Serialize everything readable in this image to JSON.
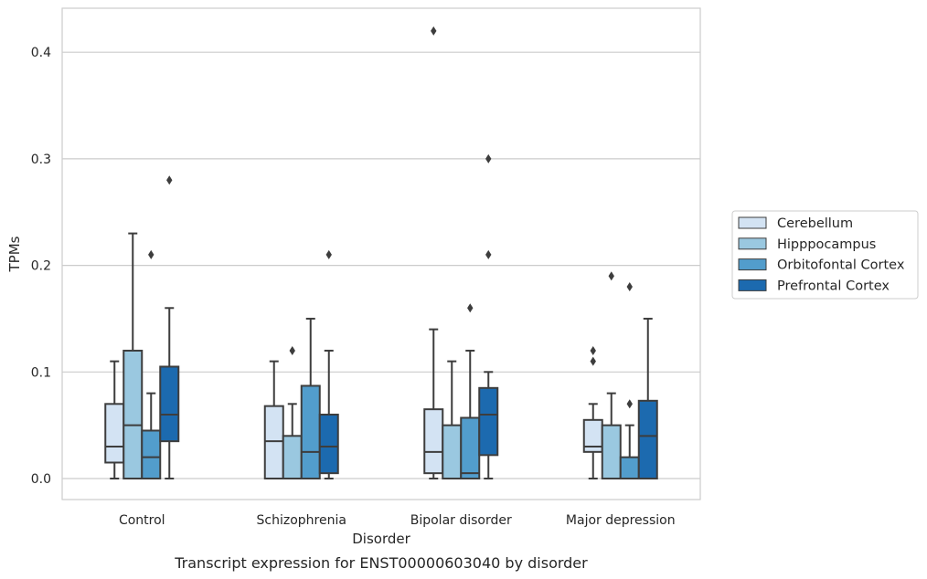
{
  "chart_data": {
    "type": "box",
    "title": "",
    "caption": "Transcript expression for ENST00000603040 by disorder",
    "xlabel": "Disorder",
    "ylabel": "TPMs",
    "ylim": [
      -0.02,
      0.44
    ],
    "yticks": [
      0.0,
      0.1,
      0.2,
      0.3,
      0.4
    ],
    "ytick_labels": [
      "0.0",
      "0.1",
      "0.2",
      "0.3",
      "0.4"
    ],
    "grid": "horizontal",
    "legend_position": "center-right, outside plot",
    "categories": [
      "Control",
      "Schizophrenia",
      "Bipolar disorder",
      "Major depression"
    ],
    "series": [
      {
        "name": "Cerebellum",
        "color": "#d3e3f3",
        "boxes": [
          {
            "whislo": 0.0,
            "q1": 0.015,
            "med": 0.03,
            "q3": 0.07,
            "whishi": 0.11,
            "fliers": []
          },
          {
            "whislo": 0.0,
            "q1": 0.0,
            "med": 0.035,
            "q3": 0.068,
            "whishi": 0.11,
            "fliers": []
          },
          {
            "whislo": 0.0,
            "q1": 0.005,
            "med": 0.025,
            "q3": 0.065,
            "whishi": 0.14,
            "fliers": [
              0.42
            ]
          },
          {
            "whislo": 0.0,
            "q1": 0.025,
            "med": 0.03,
            "q3": 0.055,
            "whishi": 0.07,
            "fliers": [
              0.11,
              0.12
            ]
          }
        ]
      },
      {
        "name": "Hipppocampus",
        "color": "#9ac8e0",
        "boxes": [
          {
            "whislo": 0.0,
            "q1": 0.0,
            "med": 0.05,
            "q3": 0.12,
            "whishi": 0.23,
            "fliers": []
          },
          {
            "whislo": 0.0,
            "q1": 0.0,
            "med": 0.0,
            "q3": 0.04,
            "whishi": 0.07,
            "fliers": [
              0.12
            ]
          },
          {
            "whislo": 0.0,
            "q1": 0.0,
            "med": 0.0,
            "q3": 0.05,
            "whishi": 0.11,
            "fliers": []
          },
          {
            "whislo": 0.0,
            "q1": 0.0,
            "med": 0.0,
            "q3": 0.05,
            "whishi": 0.08,
            "fliers": [
              0.19
            ]
          }
        ]
      },
      {
        "name": "Orbitofontal Cortex",
        "color": "#529dcc",
        "boxes": [
          {
            "whislo": 0.0,
            "q1": 0.0,
            "med": 0.02,
            "q3": 0.045,
            "whishi": 0.08,
            "fliers": [
              0.21
            ]
          },
          {
            "whislo": 0.0,
            "q1": 0.0,
            "med": 0.025,
            "q3": 0.087,
            "whishi": 0.15,
            "fliers": []
          },
          {
            "whislo": 0.0,
            "q1": 0.0,
            "med": 0.005,
            "q3": 0.057,
            "whishi": 0.12,
            "fliers": [
              0.16
            ]
          },
          {
            "whislo": 0.0,
            "q1": 0.0,
            "med": 0.0,
            "q3": 0.02,
            "whishi": 0.05,
            "fliers": [
              0.07,
              0.18
            ]
          }
        ]
      },
      {
        "name": "Prefrontal Cortex",
        "color": "#1c6aaf",
        "boxes": [
          {
            "whislo": 0.0,
            "q1": 0.035,
            "med": 0.06,
            "q3": 0.105,
            "whishi": 0.16,
            "fliers": [
              0.28
            ]
          },
          {
            "whislo": 0.0,
            "q1": 0.005,
            "med": 0.03,
            "q3": 0.06,
            "whishi": 0.12,
            "fliers": [
              0.21
            ]
          },
          {
            "whislo": 0.0,
            "q1": 0.022,
            "med": 0.06,
            "q3": 0.085,
            "whishi": 0.1,
            "fliers": [
              0.21,
              0.3
            ]
          },
          {
            "whislo": 0.0,
            "q1": 0.0,
            "med": 0.04,
            "q3": 0.073,
            "whishi": 0.15,
            "fliers": []
          }
        ]
      }
    ]
  }
}
